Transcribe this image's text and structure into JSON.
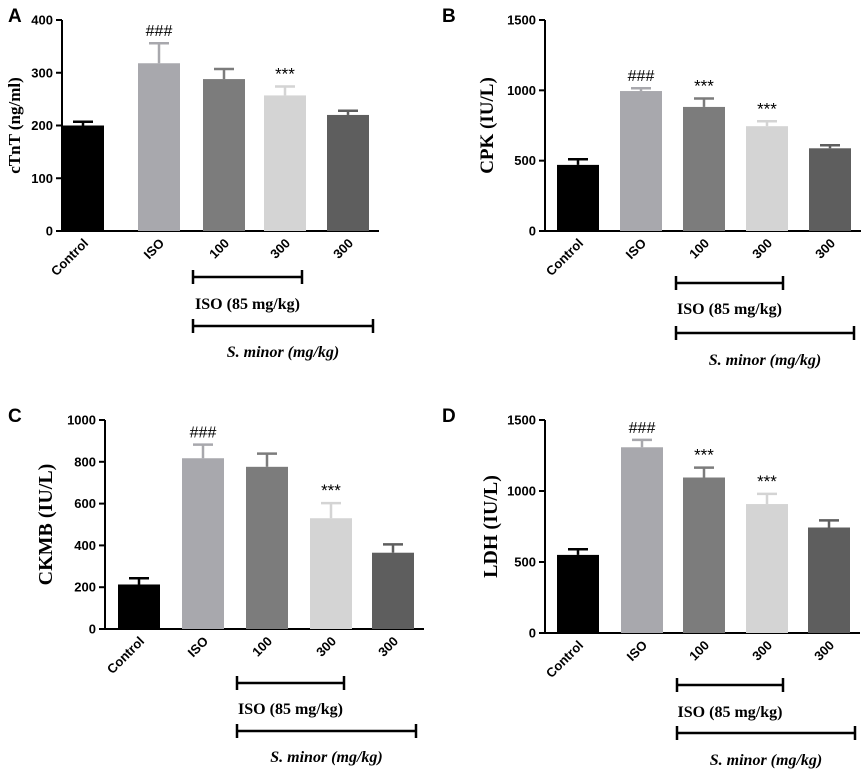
{
  "chart_data": [
    {
      "panel": "A",
      "type": "bar",
      "ylabel": "cTnT (ng/ml)",
      "ylim": [
        0,
        400
      ],
      "yticks": [
        "0",
        "100",
        "200",
        "300",
        "400"
      ],
      "categories": [
        "Control",
        "ISO",
        "100",
        "300",
        "300"
      ],
      "values": [
        200,
        318,
        288,
        257,
        220
      ],
      "errors": [
        7,
        38,
        19,
        17,
        8
      ],
      "colors": [
        "#000000",
        "#a8a8ad",
        "#7c7c7c",
        "#d4d4d4",
        "#5e5e5e"
      ],
      "annotations": [
        "",
        "###",
        "",
        "***",
        ""
      ],
      "group_labels": {
        "iso": "ISO (85 mg/kg)",
        "minor": "S. minor (mg/kg)"
      }
    },
    {
      "panel": "B",
      "type": "bar",
      "ylabel": "CPK (IU/L)",
      "ylim": [
        0,
        1500
      ],
      "yticks": [
        "0",
        "500",
        "1000",
        "1500"
      ],
      "categories": [
        "Control",
        "ISO",
        "100",
        "300",
        "300"
      ],
      "values": [
        470,
        995,
        882,
        745,
        588
      ],
      "errors": [
        40,
        20,
        60,
        35,
        22
      ],
      "colors": [
        "#000000",
        "#a8a8ad",
        "#7c7c7c",
        "#d4d4d4",
        "#5e5e5e"
      ],
      "annotations": [
        "",
        "###",
        "***",
        "***",
        ""
      ],
      "group_labels": {
        "iso": "ISO (85 mg/kg)",
        "minor": "S. minor (mg/kg)"
      }
    },
    {
      "panel": "C",
      "type": "bar",
      "ylabel": "CKMB (IU/L)",
      "ylim": [
        0,
        1000
      ],
      "yticks": [
        "0",
        "200",
        "400",
        "600",
        "800",
        "1000"
      ],
      "categories": [
        "Control",
        "ISO",
        "100",
        "300",
        "300"
      ],
      "values": [
        213,
        817,
        776,
        530,
        365
      ],
      "errors": [
        30,
        65,
        63,
        72,
        40
      ],
      "colors": [
        "#000000",
        "#a8a8ad",
        "#7c7c7c",
        "#d4d4d4",
        "#5e5e5e"
      ],
      "annotations": [
        "",
        "###",
        "",
        "***",
        ""
      ],
      "group_labels": {
        "iso": "ISO (85 mg/kg)",
        "minor": "S. minor (mg/kg)"
      }
    },
    {
      "panel": "D",
      "type": "bar",
      "ylabel": "LDH (IU/L)",
      "ylim": [
        0,
        1500
      ],
      "yticks": [
        "0",
        "500",
        "1000",
        "1500"
      ],
      "categories": [
        "Control",
        "ISO",
        "100",
        "300",
        "300"
      ],
      "values": [
        550,
        1308,
        1095,
        908,
        743
      ],
      "errors": [
        40,
        52,
        70,
        72,
        50
      ],
      "colors": [
        "#000000",
        "#a8a8ad",
        "#7c7c7c",
        "#d4d4d4",
        "#5e5e5e"
      ],
      "annotations": [
        "",
        "###",
        "***",
        "***",
        ""
      ],
      "group_labels": {
        "iso": "ISO (85 mg/kg)",
        "minor": "S. minor (mg/kg)"
      }
    }
  ]
}
